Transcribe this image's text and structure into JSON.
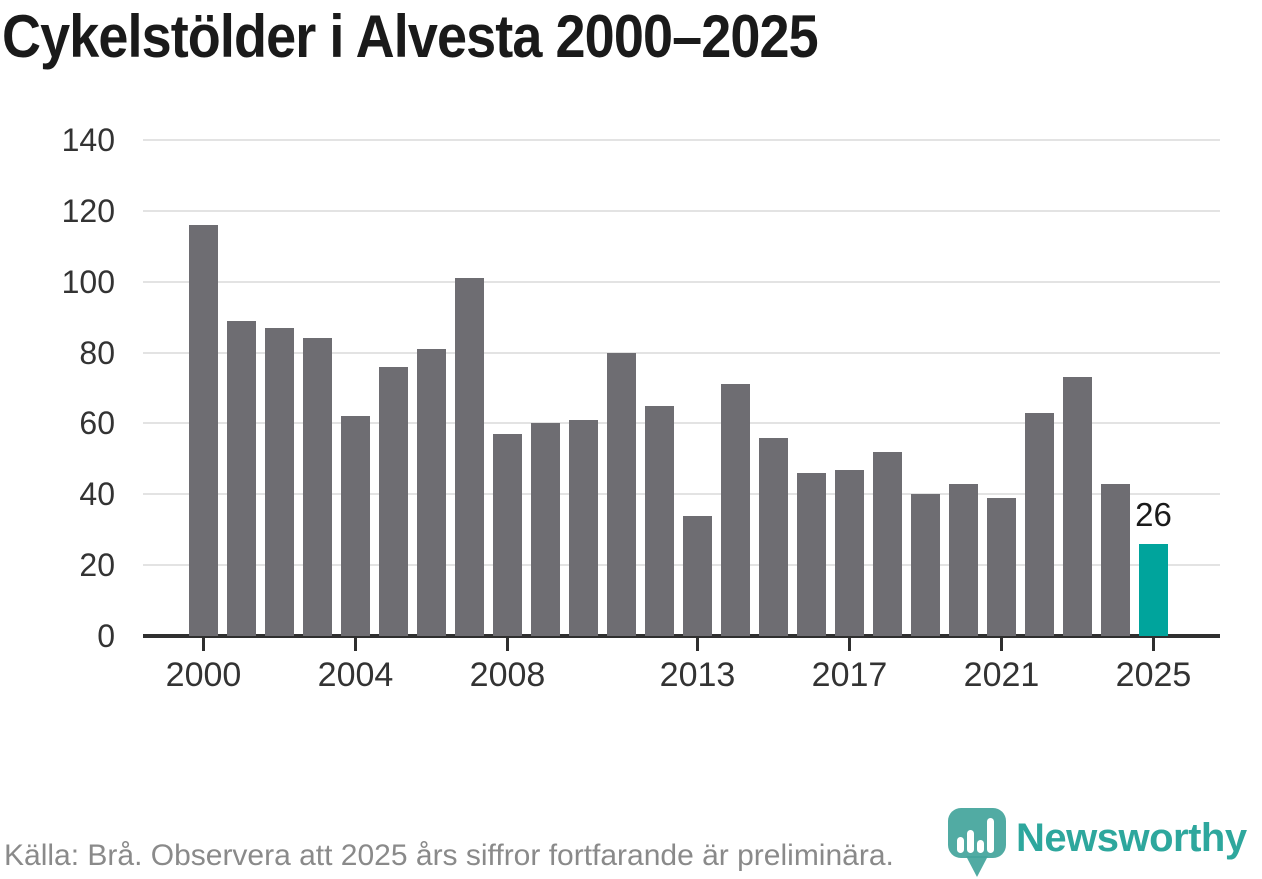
{
  "title": "Cykelstölder i Alvesta 2000–2025",
  "footer": {
    "source_text": "Källa: Brå. Observera att 2025 års siffror fortfarande är preliminära.",
    "brand": "Newsworthy"
  },
  "colors": {
    "bar": "#6e6d72",
    "highlight": "#00a49c",
    "grid": "#e3e3e3",
    "axis": "#2f2f2f",
    "tick_label": "#333333",
    "footer_text": "#8a8a8a",
    "brand_teal": "#2ea79d",
    "logo_pin": "#44a59c"
  },
  "chart_data": {
    "type": "bar",
    "title": "Cykelstölder i Alvesta 2000–2025",
    "x": [
      2000,
      2001,
      2002,
      2003,
      2004,
      2005,
      2006,
      2007,
      2008,
      2009,
      2010,
      2011,
      2012,
      2013,
      2014,
      2015,
      2016,
      2017,
      2018,
      2019,
      2020,
      2021,
      2022,
      2023,
      2024,
      2025
    ],
    "values": [
      116,
      89,
      87,
      84,
      62,
      76,
      81,
      101,
      57,
      60,
      61,
      80,
      65,
      34,
      71,
      56,
      46,
      47,
      52,
      40,
      43,
      39,
      63,
      73,
      43,
      26
    ],
    "highlight_year": 2025,
    "highlight_label": "26",
    "xlabel": "",
    "ylabel": "",
    "ylim": [
      0,
      140
    ],
    "yticks": [
      0,
      20,
      40,
      60,
      80,
      100,
      120,
      140
    ],
    "xticks": [
      2000,
      2004,
      2008,
      2013,
      2017,
      2021,
      2025
    ],
    "grid": "horizontal",
    "legend": "none"
  }
}
